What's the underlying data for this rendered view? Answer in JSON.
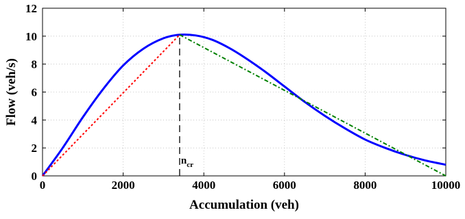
{
  "chart_data": {
    "type": "line",
    "xlabel": "Accumulation (veh)",
    "ylabel": "Flow (veh/s)",
    "xlim": [
      0,
      10000
    ],
    "ylim": [
      0,
      12
    ],
    "xticks": [
      0,
      2000,
      4000,
      6000,
      8000,
      10000
    ],
    "yticks": [
      0,
      2,
      4,
      6,
      8,
      10,
      12
    ],
    "grid": true,
    "series": [
      {
        "style": "solid",
        "color": "#0000ff",
        "x": [
          0,
          500,
          1000,
          1500,
          2000,
          2500,
          3000,
          3400,
          3800,
          4200,
          4600,
          5000,
          5500,
          6000,
          6500,
          7000,
          7500,
          8000,
          8500,
          9000,
          9500,
          10000
        ],
        "y": [
          0,
          2.0,
          4.2,
          6.2,
          7.9,
          9.1,
          9.85,
          10.1,
          10.05,
          9.75,
          9.2,
          8.5,
          7.5,
          6.4,
          5.3,
          4.3,
          3.4,
          2.6,
          2.0,
          1.5,
          1.1,
          0.8
        ]
      },
      {
        "style": "dotted",
        "color": "#ff0000",
        "x": [
          0,
          3400
        ],
        "y": [
          0,
          10.1
        ]
      },
      {
        "style": "dash-dot",
        "color": "#008000",
        "x": [
          3400,
          10000
        ],
        "y": [
          10.1,
          0
        ]
      }
    ],
    "annotations": [
      {
        "type": "vline",
        "x": 3400,
        "y_from": 0,
        "y_to": 10.1,
        "style": "dashed",
        "color": "#000000"
      },
      {
        "type": "text",
        "text": "n",
        "subscript": "cr",
        "x": 3400,
        "y": 0.4
      }
    ]
  }
}
